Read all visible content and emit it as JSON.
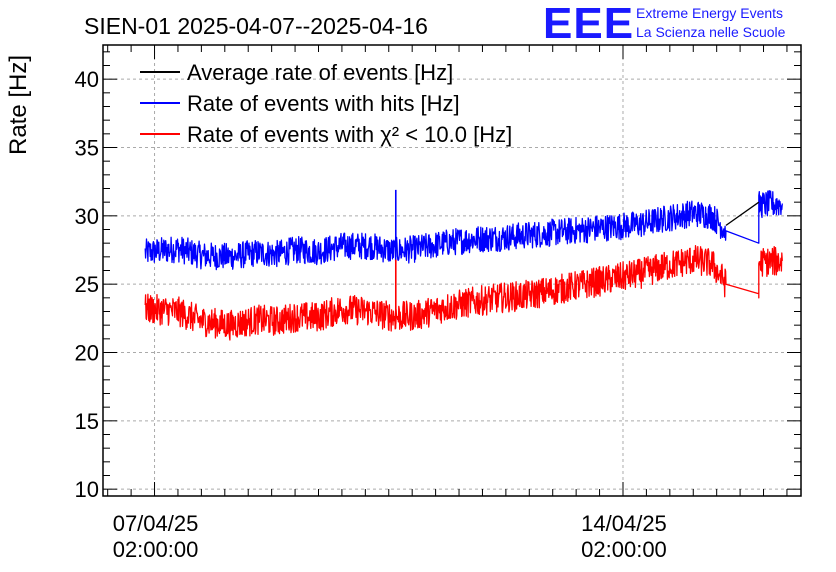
{
  "logo": {
    "mark": "EEE",
    "line1": "Extreme Energy Events",
    "line2": "La Scienza nelle Scuole"
  },
  "chart_data": {
    "type": "line",
    "title": "SIEN-01 2025-04-07--2025-04-16",
    "ylabel": "Rate [Hz]",
    "xlabel": "",
    "x_unit": "days since 07/04/25 02:00:00",
    "xlim": [
      -1.1,
      13.8
    ],
    "ylim": [
      9.5,
      42.5
    ],
    "yticks": [
      10,
      15,
      20,
      25,
      30,
      35,
      40
    ],
    "xticks": [
      {
        "x": 0,
        "line1": "07/04/25",
        "line2": "02:00:00"
      },
      {
        "x": 10,
        "line1": "14/04/25",
        "line2": "02:00:00"
      }
    ],
    "grid": true,
    "legend_position": "top-left",
    "series": [
      {
        "name": "Average rate of events [Hz]",
        "color": "#000000",
        "points": [
          [
            12.2,
            29.3
          ],
          [
            12.9,
            31.0
          ]
        ]
      },
      {
        "name": "Rate of events with hits [Hz]",
        "color": "#0000ff",
        "noise": 1.0,
        "points": [
          [
            -0.2,
            27.3
          ],
          [
            0.5,
            27.6
          ],
          [
            1.0,
            27.1
          ],
          [
            1.6,
            27.0
          ],
          [
            2.2,
            27.3
          ],
          [
            2.6,
            27.2
          ],
          [
            3.0,
            27.5
          ],
          [
            3.5,
            27.4
          ],
          [
            4.0,
            27.8
          ],
          [
            4.6,
            27.8
          ],
          [
            5.1,
            27.4
          ],
          [
            5.6,
            27.6
          ],
          [
            6.2,
            28.0
          ],
          [
            6.8,
            28.3
          ],
          [
            7.4,
            28.4
          ],
          [
            8.0,
            28.6
          ],
          [
            8.6,
            28.8
          ],
          [
            9.2,
            29.0
          ],
          [
            9.8,
            29.2
          ],
          [
            10.4,
            29.4
          ],
          [
            10.9,
            29.8
          ],
          [
            11.5,
            30.2
          ],
          [
            11.9,
            30.0
          ],
          [
            12.2,
            28.9
          ],
          [
            12.9,
            28.0
          ],
          [
            12.9,
            30.8
          ],
          [
            13.4,
            30.9
          ]
        ]
      },
      {
        "name": "Rate of events with χ² < 10.0 [Hz]",
        "color": "#ff0000",
        "noise": 1.1,
        "points": [
          [
            -0.2,
            23.2
          ],
          [
            0.5,
            23.0
          ],
          [
            1.0,
            22.3
          ],
          [
            1.6,
            22.0
          ],
          [
            2.2,
            22.4
          ],
          [
            2.6,
            22.3
          ],
          [
            3.0,
            22.6
          ],
          [
            3.5,
            22.6
          ],
          [
            4.0,
            23.2
          ],
          [
            4.6,
            23.0
          ],
          [
            5.1,
            22.6
          ],
          [
            5.6,
            22.7
          ],
          [
            6.2,
            23.3
          ],
          [
            6.8,
            23.7
          ],
          [
            7.4,
            24.0
          ],
          [
            8.0,
            24.2
          ],
          [
            8.6,
            24.6
          ],
          [
            9.2,
            25.0
          ],
          [
            9.8,
            25.4
          ],
          [
            10.4,
            25.8
          ],
          [
            10.9,
            26.3
          ],
          [
            11.5,
            26.8
          ],
          [
            11.9,
            26.5
          ],
          [
            12.2,
            25.0
          ],
          [
            12.9,
            24.3
          ],
          [
            12.9,
            26.6
          ],
          [
            13.4,
            26.7
          ]
        ]
      }
    ],
    "spikes": [
      {
        "series": 1,
        "x": 5.15,
        "y": 31.9
      },
      {
        "series": 2,
        "x": 5.15,
        "y": 26.8
      }
    ]
  }
}
